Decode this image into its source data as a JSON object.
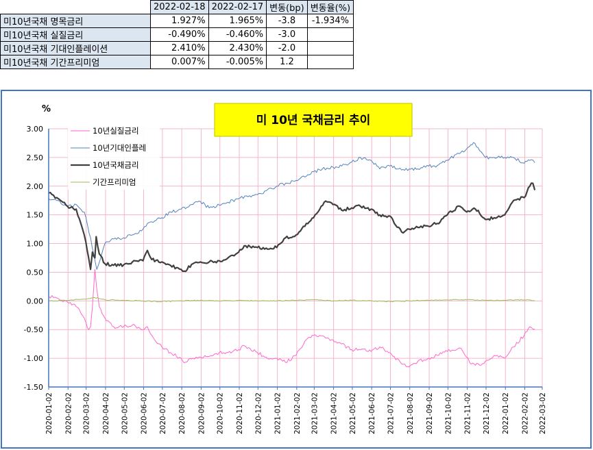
{
  "table": {
    "headers": [
      "",
      "2022-02-18",
      "2022-02-17",
      "변동(bp)",
      "변동율(%)"
    ],
    "rows": [
      {
        "label": "미10년국채 명목금리",
        "v1": "1.927%",
        "v2": "1.965%",
        "bp": "-3.8",
        "pct": "-1.934%"
      },
      {
        "label": "미10년국채 실질금리",
        "v1": "-0.490%",
        "v2": "-0.460%",
        "bp": "-3.0",
        "pct": ""
      },
      {
        "label": "미10년국채 기대인플레이션",
        "v1": "2.410%",
        "v2": "2.430%",
        "bp": "-2.0",
        "pct": ""
      },
      {
        "label": "미10년국채 기간프리미엄",
        "v1": "0.007%",
        "v2": "-0.005%",
        "bp": "1.2",
        "pct": ""
      }
    ]
  },
  "chart_data": {
    "type": "line",
    "title": "미 10년 국채금리 추이",
    "unit_label": "%",
    "ylim": [
      -1.5,
      3.0
    ],
    "ytick_step": 0.5,
    "x_ticks": [
      "2020-01-02",
      "2020-02-02",
      "2020-03-02",
      "2020-04-02",
      "2020-05-02",
      "2020-06-02",
      "2020-07-02",
      "2020-08-02",
      "2020-09-02",
      "2020-10-02",
      "2020-11-02",
      "2020-12-02",
      "2021-01-02",
      "2021-02-02",
      "2021-03-02",
      "2021-04-02",
      "2021-05-02",
      "2021-06-02",
      "2021-07-02",
      "2021-08-02",
      "2021-09-02",
      "2021-10-02",
      "2021-11-02",
      "2021-12-02",
      "2022-01-02",
      "2022-02-02",
      "2022-03-02"
    ],
    "grid": true,
    "legend_position": "top-left",
    "title_box_color": "#ffff00",
    "series": [
      {
        "name": "10년실질금리",
        "color": "#ff66cc",
        "width": 1,
        "x": [
          "2020-01-02",
          "2020-01-15",
          "2020-02-01",
          "2020-02-15",
          "2020-02-28",
          "2020-03-06",
          "2020-03-09",
          "2020-03-12",
          "2020-03-16",
          "2020-03-19",
          "2020-03-23",
          "2020-04-01",
          "2020-04-15",
          "2020-05-01",
          "2020-05-15",
          "2020-06-01",
          "2020-06-08",
          "2020-06-15",
          "2020-07-01",
          "2020-07-15",
          "2020-08-01",
          "2020-08-06",
          "2020-08-20",
          "2020-09-01",
          "2020-09-15",
          "2020-10-01",
          "2020-10-15",
          "2020-11-01",
          "2020-11-10",
          "2020-12-01",
          "2020-12-15",
          "2021-01-01",
          "2021-01-15",
          "2021-02-01",
          "2021-02-15",
          "2021-03-01",
          "2021-03-18",
          "2021-04-01",
          "2021-04-15",
          "2021-05-01",
          "2021-05-15",
          "2021-06-01",
          "2021-06-15",
          "2021-07-01",
          "2021-07-20",
          "2021-08-01",
          "2021-08-15",
          "2021-09-01",
          "2021-09-15",
          "2021-10-01",
          "2021-10-21",
          "2021-11-01",
          "2021-11-08",
          "2021-11-24",
          "2021-12-01",
          "2021-12-15",
          "2022-01-01",
          "2022-01-15",
          "2022-02-01",
          "2022-02-10",
          "2022-02-18"
        ],
        "y": [
          0.08,
          0.05,
          -0.02,
          -0.1,
          -0.3,
          -0.5,
          -0.45,
          -0.1,
          0.55,
          0.2,
          -0.1,
          -0.3,
          -0.45,
          -0.45,
          -0.42,
          -0.5,
          -0.45,
          -0.6,
          -0.8,
          -0.9,
          -1.0,
          -1.08,
          -1.0,
          -0.98,
          -0.97,
          -0.9,
          -0.9,
          -0.85,
          -0.78,
          -0.9,
          -0.98,
          -1.0,
          -1.07,
          -0.95,
          -0.7,
          -0.6,
          -0.62,
          -0.68,
          -0.75,
          -0.85,
          -0.85,
          -0.88,
          -0.8,
          -0.9,
          -1.1,
          -1.15,
          -1.05,
          -1.0,
          -0.95,
          -0.88,
          -0.82,
          -0.98,
          -1.1,
          -1.12,
          -1.05,
          -0.95,
          -1.0,
          -0.8,
          -0.6,
          -0.45,
          -0.49
        ]
      },
      {
        "name": "10년기대인플레",
        "color": "#4f81bd",
        "width": 1,
        "x": [
          "2020-01-02",
          "2020-01-15",
          "2020-02-01",
          "2020-02-15",
          "2020-02-28",
          "2020-03-09",
          "2020-03-19",
          "2020-04-01",
          "2020-04-15",
          "2020-05-01",
          "2020-05-15",
          "2020-06-01",
          "2020-06-08",
          "2020-07-01",
          "2020-07-15",
          "2020-08-01",
          "2020-08-15",
          "2020-09-01",
          "2020-09-15",
          "2020-10-01",
          "2020-10-15",
          "2020-11-01",
          "2020-12-01",
          "2020-12-15",
          "2021-01-01",
          "2021-02-01",
          "2021-02-15",
          "2021-03-01",
          "2021-03-15",
          "2021-04-01",
          "2021-04-15",
          "2021-05-01",
          "2021-05-15",
          "2021-06-01",
          "2021-06-15",
          "2021-07-01",
          "2021-07-15",
          "2021-08-01",
          "2021-08-15",
          "2021-09-01",
          "2021-09-15",
          "2021-10-01",
          "2021-10-15",
          "2021-11-01",
          "2021-11-12",
          "2021-11-24",
          "2021-12-01",
          "2021-12-15",
          "2022-01-01",
          "2022-01-15",
          "2022-02-01",
          "2022-02-10",
          "2022-02-18"
        ],
        "y": [
          1.78,
          1.75,
          1.65,
          1.68,
          1.55,
          1.1,
          0.55,
          1.0,
          1.08,
          1.1,
          1.15,
          1.25,
          1.35,
          1.45,
          1.55,
          1.6,
          1.67,
          1.73,
          1.62,
          1.67,
          1.72,
          1.78,
          1.85,
          1.92,
          2.0,
          2.1,
          2.16,
          2.25,
          2.3,
          2.33,
          2.35,
          2.42,
          2.5,
          2.45,
          2.3,
          2.35,
          2.3,
          2.3,
          2.3,
          2.35,
          2.36,
          2.45,
          2.55,
          2.65,
          2.76,
          2.6,
          2.5,
          2.5,
          2.5,
          2.5,
          2.4,
          2.45,
          2.41
        ]
      },
      {
        "name": "10년국채금리",
        "color": "#404040",
        "width": 2.2,
        "x": [
          "2020-01-02",
          "2020-01-15",
          "2020-02-01",
          "2020-02-15",
          "2020-02-28",
          "2020-03-06",
          "2020-03-09",
          "2020-03-12",
          "2020-03-16",
          "2020-03-18",
          "2020-03-23",
          "2020-04-01",
          "2020-04-15",
          "2020-05-01",
          "2020-05-15",
          "2020-06-01",
          "2020-06-08",
          "2020-06-15",
          "2020-07-01",
          "2020-07-15",
          "2020-08-01",
          "2020-08-06",
          "2020-08-20",
          "2020-09-01",
          "2020-09-15",
          "2020-10-01",
          "2020-10-15",
          "2020-11-01",
          "2020-11-10",
          "2020-12-01",
          "2020-12-15",
          "2021-01-01",
          "2021-01-15",
          "2021-02-01",
          "2021-02-15",
          "2021-03-01",
          "2021-03-18",
          "2021-04-01",
          "2021-04-15",
          "2021-05-01",
          "2021-05-15",
          "2021-06-01",
          "2021-06-15",
          "2021-07-01",
          "2021-07-20",
          "2021-08-01",
          "2021-08-15",
          "2021-09-01",
          "2021-09-15",
          "2021-10-01",
          "2021-10-21",
          "2021-11-01",
          "2021-11-15",
          "2021-12-01",
          "2021-12-15",
          "2022-01-01",
          "2022-01-15",
          "2022-02-01",
          "2022-02-10",
          "2022-02-15",
          "2022-02-18"
        ],
        "y": [
          1.88,
          1.8,
          1.65,
          1.6,
          1.15,
          0.75,
          0.55,
          0.85,
          0.75,
          1.12,
          0.82,
          0.65,
          0.62,
          0.63,
          0.68,
          0.7,
          0.88,
          0.72,
          0.68,
          0.62,
          0.55,
          0.52,
          0.65,
          0.68,
          0.68,
          0.7,
          0.75,
          0.85,
          0.96,
          0.93,
          0.92,
          0.93,
          1.1,
          1.15,
          1.3,
          1.45,
          1.72,
          1.68,
          1.58,
          1.62,
          1.65,
          1.6,
          1.5,
          1.48,
          1.2,
          1.25,
          1.28,
          1.3,
          1.35,
          1.5,
          1.65,
          1.55,
          1.6,
          1.42,
          1.45,
          1.5,
          1.75,
          1.8,
          2.0,
          2.05,
          1.93
        ]
      },
      {
        "name": "기간프리미엄",
        "color": "#9bbb59",
        "width": 1,
        "x": [
          "2020-01-02",
          "2020-02-01",
          "2020-03-01",
          "2020-03-15",
          "2020-04-01",
          "2020-05-01",
          "2020-06-01",
          "2020-07-01",
          "2020-08-01",
          "2020-09-01",
          "2020-10-01",
          "2020-11-01",
          "2020-12-01",
          "2021-01-01",
          "2021-02-01",
          "2021-03-01",
          "2021-04-01",
          "2021-05-01",
          "2021-06-01",
          "2021-07-01",
          "2021-08-01",
          "2021-09-01",
          "2021-10-01",
          "2021-11-01",
          "2021-12-01",
          "2022-01-01",
          "2022-02-01",
          "2022-02-18"
        ],
        "y": [
          0.0,
          0.01,
          0.03,
          0.06,
          0.02,
          0.01,
          0.0,
          -0.01,
          0.0,
          0.01,
          0.0,
          0.01,
          0.0,
          0.0,
          0.01,
          0.02,
          0.0,
          0.01,
          0.0,
          -0.01,
          0.0,
          0.01,
          0.02,
          0.02,
          0.01,
          0.01,
          0.02,
          0.007
        ]
      }
    ]
  }
}
